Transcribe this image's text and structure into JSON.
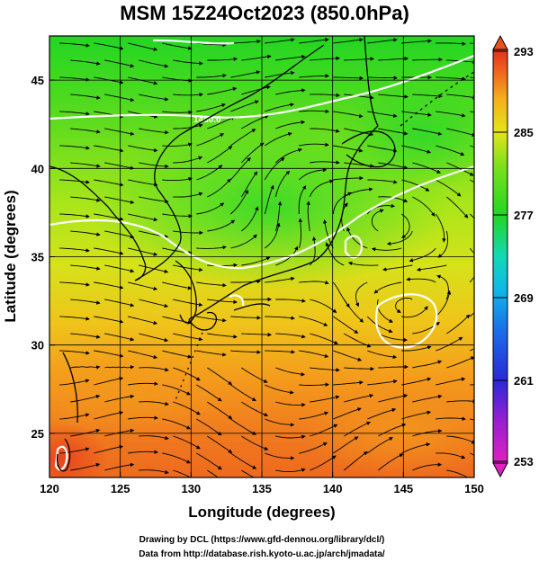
{
  "title": "MSM 15Z24Oct2023 (850.0hPa)",
  "xlabel": "Longitude (degrees)",
  "ylabel": "Latitude  (degrees)",
  "x_ticks": [
    "120",
    "125",
    "130",
    "135",
    "140",
    "145",
    "150"
  ],
  "y_ticks": [
    "25",
    "30",
    "35",
    "40",
    "45"
  ],
  "colorbar": {
    "ticks": [
      "293",
      "285",
      "277",
      "269",
      "261",
      "253"
    ],
    "min": 253,
    "max": 293
  },
  "contour_label": "1480.0",
  "credits": [
    "Drawing by DCL (https://www.gfd-dennou.org/library/dcl/)",
    "Data from http://database.rish.kyoto-u.ac.jp/arch/jmadata/"
  ],
  "map": {
    "lon_range": [
      120,
      150
    ],
    "lat_range": [
      22.5,
      47.5
    ],
    "field": "temperature",
    "overlay": [
      "streamlines",
      "geopotential-height-contours",
      "coastlines",
      "graticule"
    ]
  }
}
